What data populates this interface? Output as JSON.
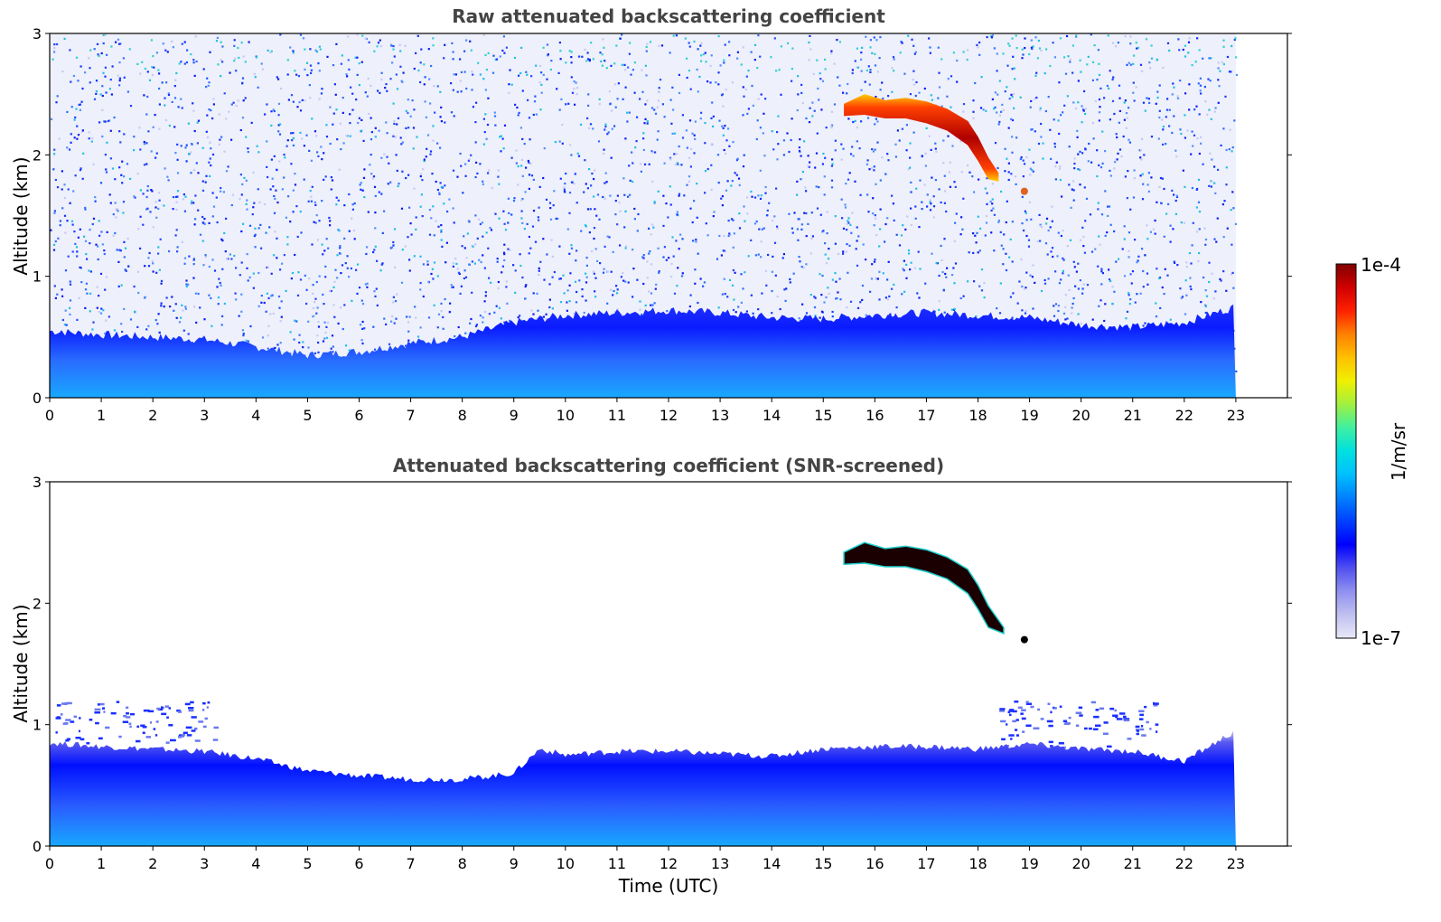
{
  "chart_data": [
    {
      "type": "heatmap",
      "title": "Raw attenuated backscattering coefficient",
      "xlabel": "",
      "ylabel": "Altitude (km)",
      "xlim": [
        0,
        24
      ],
      "ylim": [
        0,
        3
      ],
      "xticks": [
        "0",
        "1",
        "2",
        "3",
        "4",
        "5",
        "6",
        "7",
        "8",
        "9",
        "10",
        "11",
        "12",
        "13",
        "14",
        "15",
        "16",
        "17",
        "18",
        "19",
        "20",
        "21",
        "22",
        "23"
      ],
      "yticks": [
        "0",
        "1",
        "2",
        "3"
      ],
      "data_extent_x": [
        0,
        23
      ],
      "boundary_layer_top_km": {
        "x": [
          0,
          1,
          2,
          3,
          4,
          5,
          6,
          7,
          8,
          9,
          10,
          11,
          12,
          13,
          14,
          15,
          16,
          17,
          18,
          19,
          20,
          21,
          22,
          23
        ],
        "y": [
          0.55,
          0.52,
          0.5,
          0.48,
          0.42,
          0.35,
          0.38,
          0.45,
          0.5,
          0.62,
          0.68,
          0.7,
          0.72,
          0.7,
          0.66,
          0.65,
          0.68,
          0.7,
          0.68,
          0.66,
          0.6,
          0.58,
          0.62,
          0.75
        ]
      },
      "elevated_layer": {
        "x": [
          15.4,
          15.8,
          16.2,
          16.6,
          17.0,
          17.4,
          17.8,
          18.0,
          18.2,
          18.4
        ],
        "top_km": [
          2.42,
          2.5,
          2.45,
          2.47,
          2.44,
          2.38,
          2.28,
          2.15,
          1.98,
          1.85
        ],
        "bottom_km": [
          2.32,
          2.33,
          2.3,
          2.3,
          2.26,
          2.2,
          2.08,
          1.95,
          1.8,
          1.78
        ]
      },
      "small_feature": {
        "x": 18.9,
        "y_km": 1.7
      },
      "noise": "dense speckle above boundary layer"
    },
    {
      "type": "heatmap",
      "title": "Attenuated backscattering coefficient (SNR-screened)",
      "xlabel": "Time (UTC)",
      "ylabel": "Altitude (km)",
      "xlim": [
        0,
        24
      ],
      "ylim": [
        0,
        3
      ],
      "xticks": [
        "0",
        "1",
        "2",
        "3",
        "4",
        "5",
        "6",
        "7",
        "8",
        "9",
        "10",
        "11",
        "12",
        "13",
        "14",
        "15",
        "16",
        "17",
        "18",
        "19",
        "20",
        "21",
        "22",
        "23"
      ],
      "yticks": [
        "0",
        "1",
        "2",
        "3"
      ],
      "data_extent_x": [
        0,
        23
      ],
      "boundary_layer_top_km": {
        "x": [
          0,
          1,
          2,
          3,
          4,
          5,
          6,
          7,
          8,
          9,
          9.5,
          10,
          11,
          12,
          13,
          14,
          15,
          16,
          17,
          18,
          19,
          20,
          21,
          22,
          23
        ],
        "y": [
          0.85,
          0.82,
          0.8,
          0.78,
          0.72,
          0.62,
          0.58,
          0.55,
          0.55,
          0.6,
          0.8,
          0.75,
          0.78,
          0.78,
          0.76,
          0.74,
          0.8,
          0.82,
          0.82,
          0.8,
          0.84,
          0.8,
          0.78,
          0.7,
          0.95
        ]
      },
      "elevated_layer": {
        "x": [
          15.4,
          15.8,
          16.2,
          16.6,
          17.0,
          17.4,
          17.8,
          18.0,
          18.2,
          18.5
        ],
        "top_km": [
          2.42,
          2.5,
          2.45,
          2.47,
          2.44,
          2.38,
          2.28,
          2.15,
          1.98,
          1.8
        ],
        "bottom_km": [
          2.32,
          2.33,
          2.3,
          2.3,
          2.26,
          2.2,
          2.08,
          1.95,
          1.8,
          1.75
        ]
      },
      "small_feature": {
        "x": 18.9,
        "y_km": 1.7
      },
      "noise": "screened; sparse patches near 1.0–1.2 km at 0–3 h and 18–21 h"
    }
  ],
  "colorbar": {
    "label": "1/m/sr",
    "min_label": "1e-7",
    "max_label": "1e-4",
    "scale": "log",
    "colormap": [
      "#e8e8f8",
      "#c0c0f0",
      "#9090f0",
      "#5050f0",
      "#0000ff",
      "#0040ff",
      "#0080ff",
      "#00c0ff",
      "#00e0e0",
      "#40f0a0",
      "#a0f040",
      "#f0f000",
      "#ffc000",
      "#ff8000",
      "#ff2000",
      "#d00000",
      "#800000"
    ]
  },
  "colors": {
    "low_noise": "#e8e8f8",
    "bl_dark": "#1a1aff",
    "bl_light": "#00b0ff",
    "layer_hot": "#c01000",
    "layer_core": "#2a0000"
  }
}
